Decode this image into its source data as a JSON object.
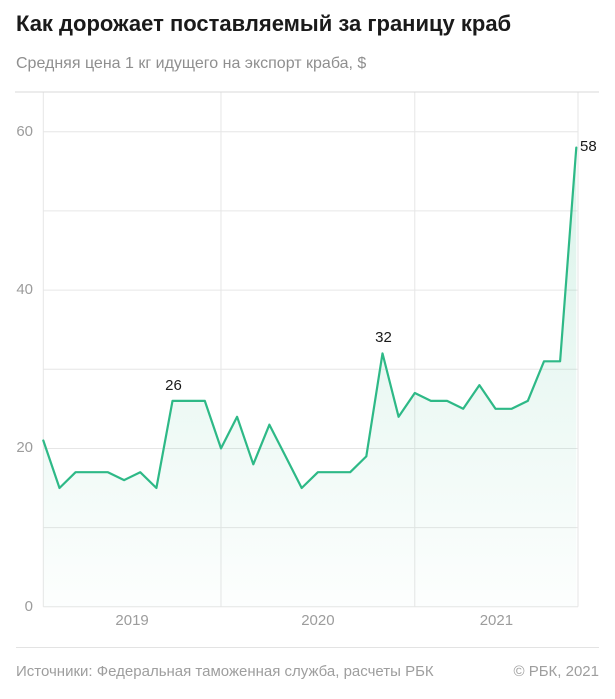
{
  "header": {
    "title": "Как дорожает поставляемый за границу краб",
    "subtitle": "Средняя цена 1 кг идущего на экспорт краба, $"
  },
  "footer": {
    "sources": "Источники: Федеральная таможенная служба, расчеты РБК",
    "copyright": "© РБК, 2021"
  },
  "chart_data": {
    "type": "area",
    "title": "Как дорожает поставляемый за границу краб",
    "ylabel": "Средняя цена 1 кг идущего на экспорт краба, $",
    "x_interval": "monthly",
    "values": [
      21,
      15,
      17,
      17,
      17,
      16,
      17,
      15,
      26,
      26,
      26,
      20,
      24,
      18,
      23,
      19,
      15,
      17,
      17,
      17,
      19,
      32,
      24,
      27,
      26,
      26,
      25,
      28,
      25,
      25,
      26,
      31,
      31,
      58
    ],
    "x_year_labels": [
      "2019",
      "2020",
      "2021"
    ],
    "year_boundary_indices": [
      11,
      23
    ],
    "y_ticks": [
      {
        "label": "60",
        "value": 60
      },
      {
        "label": "40",
        "value": 40
      },
      {
        "label": "20",
        "value": 20
      },
      {
        "label": "0",
        "value": 0
      }
    ],
    "y_gridlines": [
      0,
      10,
      20,
      30,
      40,
      50,
      60
    ],
    "ylim": [
      0,
      65
    ],
    "grid": true,
    "legend": "none",
    "annotations": [
      {
        "index": 8,
        "label": "26",
        "placement": "above"
      },
      {
        "index": 21,
        "label": "32",
        "placement": "above"
      },
      {
        "index": 33,
        "label": "58",
        "placement": "right"
      }
    ],
    "colors": {
      "line": "#2eb987",
      "fill_top": "rgba(46,185,135,0.20)",
      "fill_bottom": "rgba(46,185,135,0.01)",
      "gridline": "#e6e6e6",
      "top_rule": "#d8d8d8",
      "title_text": "#1a1a1a",
      "muted_text": "#9c9c9c"
    }
  }
}
